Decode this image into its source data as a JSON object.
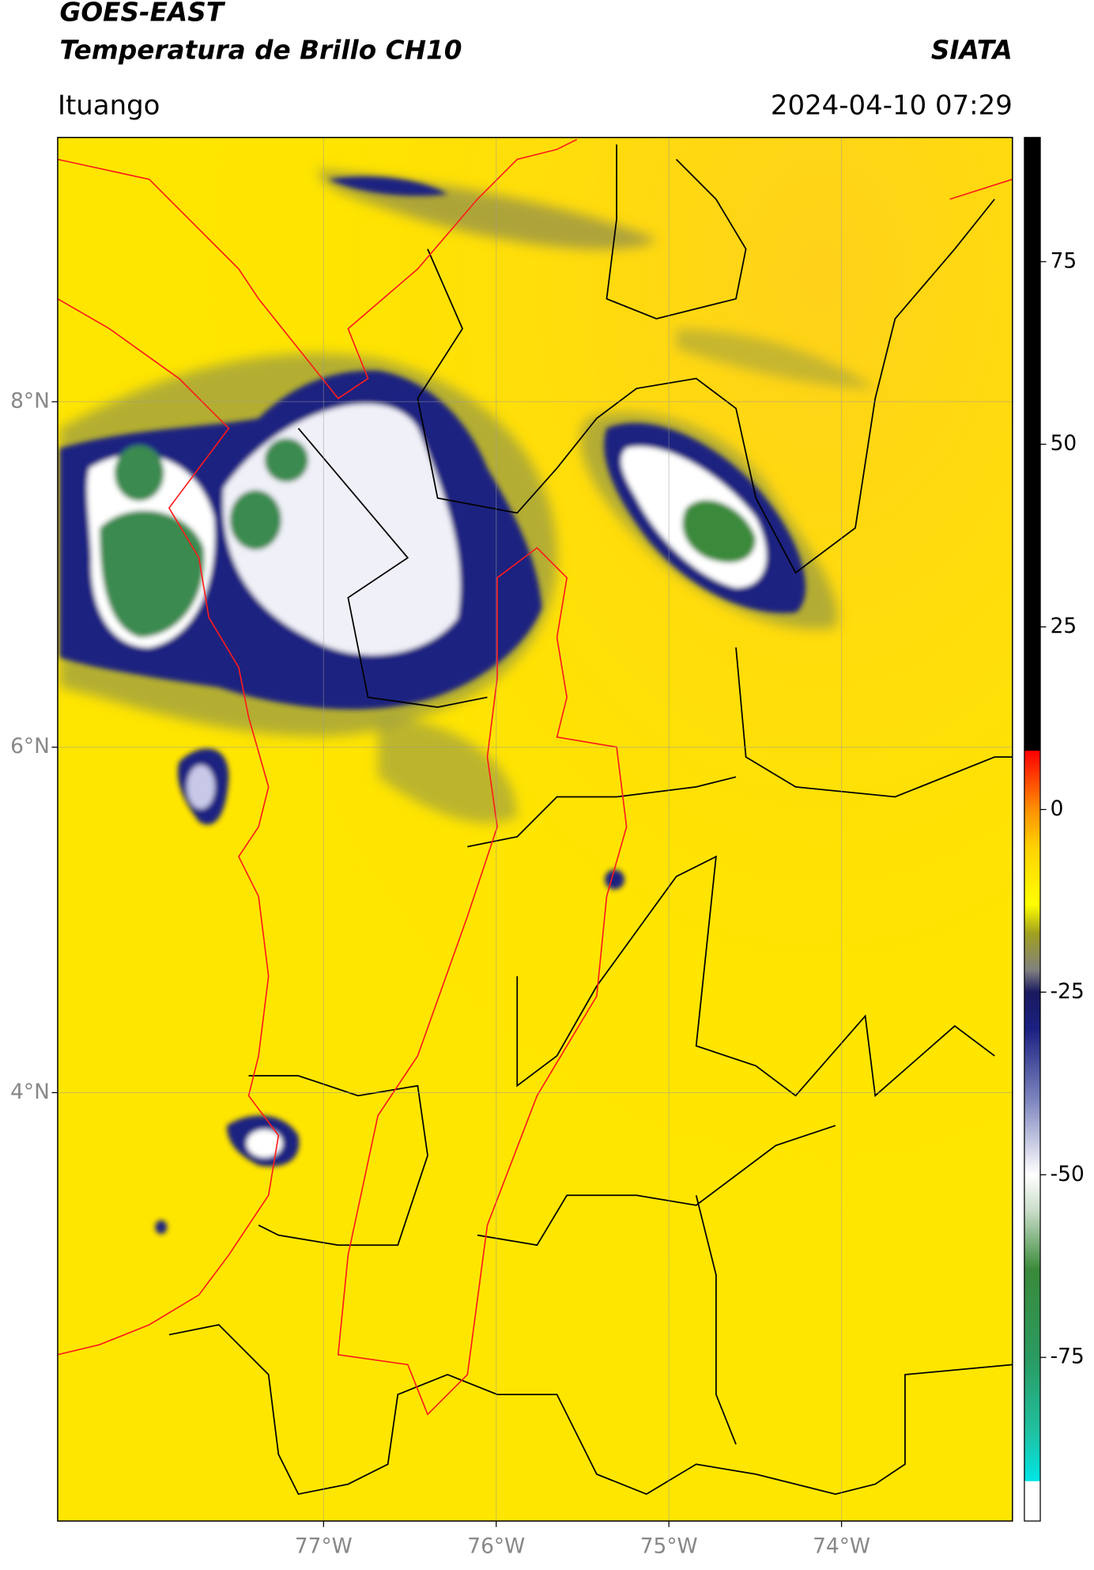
{
  "chart_data": {
    "type": "map",
    "title": "GOES-EAST",
    "subtitle": "Temperatura de Brillo CH10",
    "source": "SIATA",
    "region": "Ituango",
    "timestamp": "2024-04-10 07:29",
    "xlim": [
      -78.54,
      -73.01
    ],
    "ylim": [
      1.52,
      9.53
    ],
    "xticks": [
      {
        "value": -77,
        "label": "77°W"
      },
      {
        "value": -76,
        "label": "76°W"
      },
      {
        "value": -75,
        "label": "75°W"
      },
      {
        "value": -74,
        "label": "74°W"
      }
    ],
    "yticks": [
      {
        "value": 4,
        "label": "4°N"
      },
      {
        "value": 6,
        "label": "6°N"
      },
      {
        "value": 8,
        "label": "8°N"
      }
    ],
    "grid": true,
    "colorbar": {
      "lim": [
        -97.4,
        92
      ],
      "ticks": [
        -75,
        -50,
        -25,
        0,
        25,
        50,
        75
      ],
      "colormap": [
        {
          "value": -97.4,
          "color": "#ffffff"
        },
        {
          "value": -92,
          "color": "#ffffff"
        },
        {
          "value": -91.9,
          "color": "#00e5e5"
        },
        {
          "value": -85,
          "color": "#20c0a0"
        },
        {
          "value": -75,
          "color": "#2a9a60"
        },
        {
          "value": -63,
          "color": "#3a8a3a"
        },
        {
          "value": -55,
          "color": "#c8dcc8"
        },
        {
          "value": -50,
          "color": "#ffffff"
        },
        {
          "value": -40,
          "color": "#8088c0"
        },
        {
          "value": -30,
          "color": "#1a2080"
        },
        {
          "value": -25,
          "color": "#1a1a60"
        },
        {
          "value": -22,
          "color": "#808080"
        },
        {
          "value": -17,
          "color": "#a0a020"
        },
        {
          "value": -13,
          "color": "#ffff00"
        },
        {
          "value": -5,
          "color": "#ffd000"
        },
        {
          "value": 0,
          "color": "#ff9000"
        },
        {
          "value": 8,
          "color": "#ff0000"
        },
        {
          "value": 8.1,
          "color": "#000000"
        },
        {
          "value": 92,
          "color": "#000000"
        }
      ]
    }
  }
}
